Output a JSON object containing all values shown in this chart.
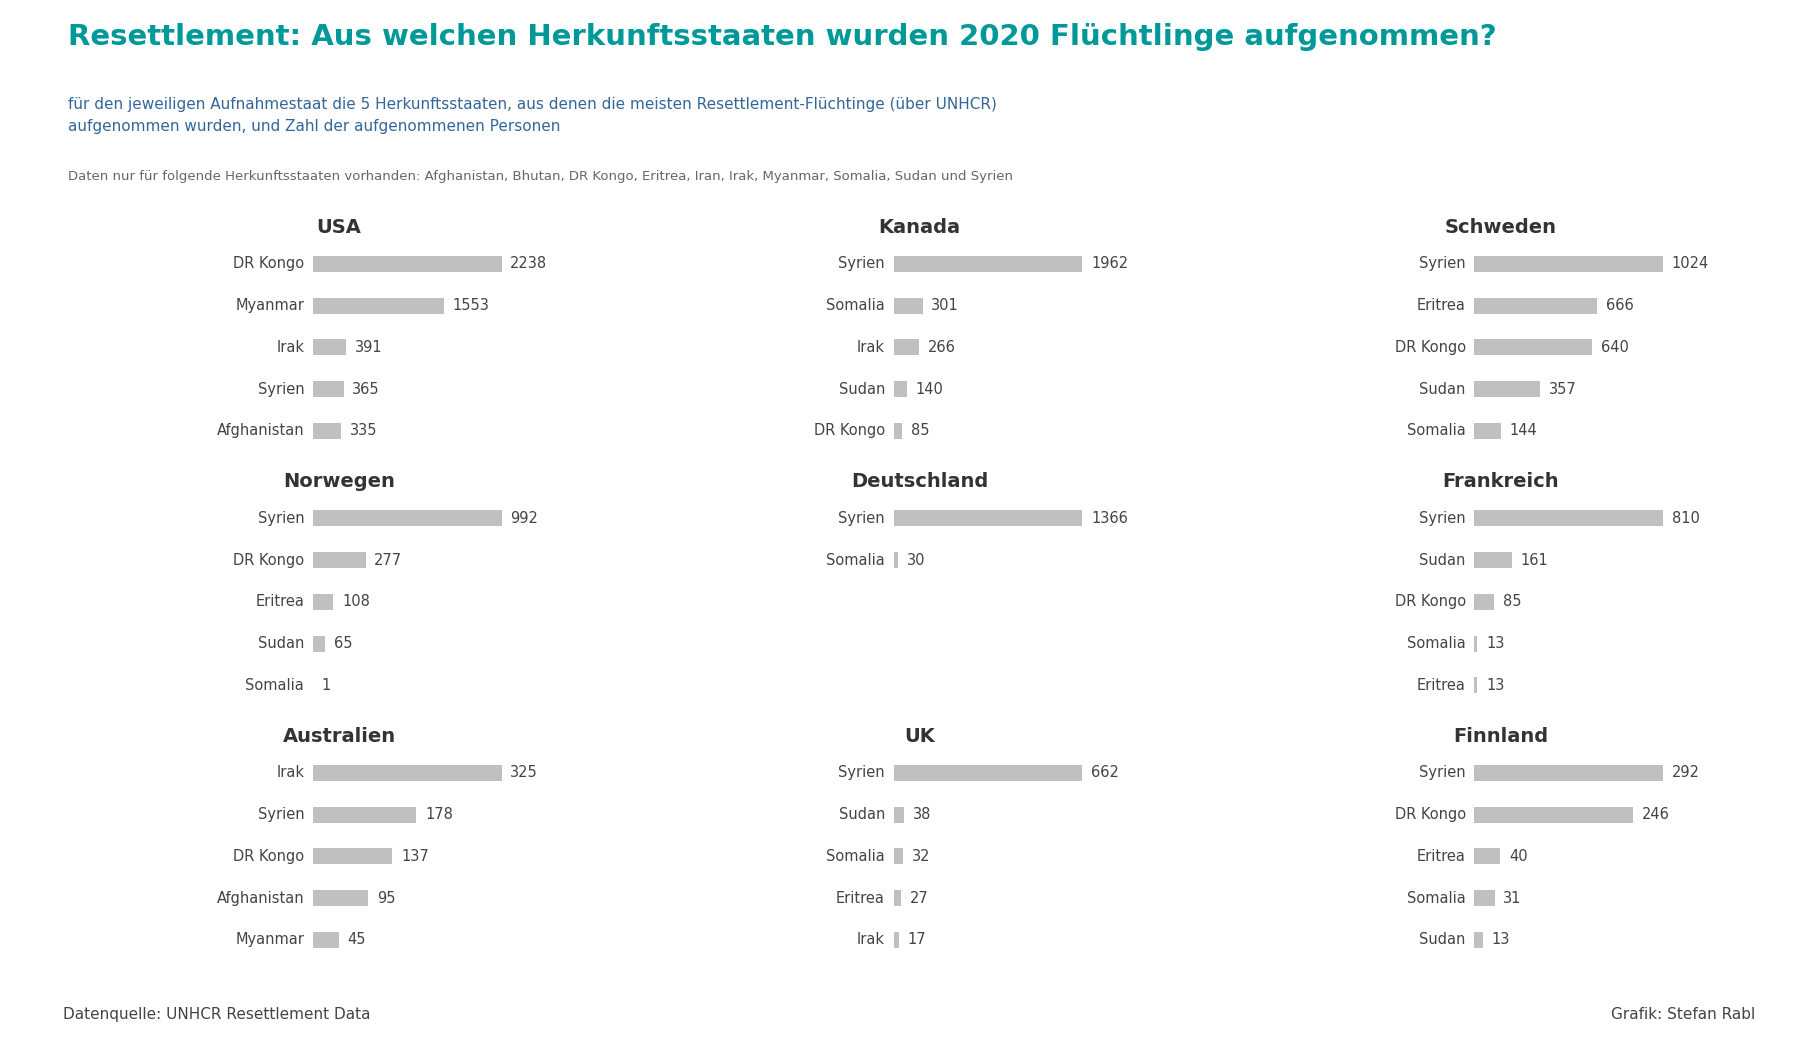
{
  "title": "Resettlement: Aus welchen Herkunftsstaaten wurden 2020 Flüchtlinge aufgenommen?",
  "subtitle": "für den jeweiligen Aufnahmestaat die 5 Herkunftsstaaten, aus denen die meisten Resettlement-Flüchtinge (über UNHCR)\naufgenommen wurden, und Zahl der aufgenommenen Personen",
  "footnote": "Daten nur für folgende Herkunftsstaaten vorhanden: Afghanistan, Bhutan, DR Kongo, Eritrea, Iran, Irak, Myanmar, Somalia, Sudan und Syrien",
  "source": "Datenquelle: UNHCR Resettlement Data",
  "author": "Grafik: Stefan Rabl",
  "title_color": "#00999a",
  "subtitle_color": "#336699",
  "footnote_color": "#666666",
  "bar_color": "#c0c0c0",
  "label_color": "#444444",
  "value_color": "#444444",
  "country_title_color": "#333333",
  "sidebar_color": "#009999",
  "footer_bg_color": "#e0e0e0",
  "bg_color": "#ffffff",
  "panels": [
    {
      "title": "USA",
      "data": [
        {
          "label": "DR Kongo",
          "value": 2238
        },
        {
          "label": "Myanmar",
          "value": 1553
        },
        {
          "label": "Irak",
          "value": 391
        },
        {
          "label": "Syrien",
          "value": 365
        },
        {
          "label": "Afghanistan",
          "value": 335
        }
      ]
    },
    {
      "title": "Kanada",
      "data": [
        {
          "label": "Syrien",
          "value": 1962
        },
        {
          "label": "Somalia",
          "value": 301
        },
        {
          "label": "Irak",
          "value": 266
        },
        {
          "label": "Sudan",
          "value": 140
        },
        {
          "label": "DR Kongo",
          "value": 85
        }
      ]
    },
    {
      "title": "Schweden",
      "data": [
        {
          "label": "Syrien",
          "value": 1024
        },
        {
          "label": "Eritrea",
          "value": 666
        },
        {
          "label": "DR Kongo",
          "value": 640
        },
        {
          "label": "Sudan",
          "value": 357
        },
        {
          "label": "Somalia",
          "value": 144
        }
      ]
    },
    {
      "title": "Norwegen",
      "data": [
        {
          "label": "Syrien",
          "value": 992
        },
        {
          "label": "DR Kongo",
          "value": 277
        },
        {
          "label": "Eritrea",
          "value": 108
        },
        {
          "label": "Sudan",
          "value": 65
        },
        {
          "label": "Somalia",
          "value": 1
        }
      ]
    },
    {
      "title": "Deutschland",
      "data": [
        {
          "label": "Syrien",
          "value": 1366
        },
        {
          "label": "Somalia",
          "value": 30
        }
      ]
    },
    {
      "title": "Frankreich",
      "data": [
        {
          "label": "Syrien",
          "value": 810
        },
        {
          "label": "Sudan",
          "value": 161
        },
        {
          "label": "DR Kongo",
          "value": 85
        },
        {
          "label": "Somalia",
          "value": 13
        },
        {
          "label": "Eritrea",
          "value": 13
        }
      ]
    },
    {
      "title": "Australien",
      "data": [
        {
          "label": "Irak",
          "value": 325
        },
        {
          "label": "Syrien",
          "value": 178
        },
        {
          "label": "DR Kongo",
          "value": 137
        },
        {
          "label": "Afghanistan",
          "value": 95
        },
        {
          "label": "Myanmar",
          "value": 45
        }
      ]
    },
    {
      "title": "UK",
      "data": [
        {
          "label": "Syrien",
          "value": 662
        },
        {
          "label": "Sudan",
          "value": 38
        },
        {
          "label": "Somalia",
          "value": 32
        },
        {
          "label": "Eritrea",
          "value": 27
        },
        {
          "label": "Irak",
          "value": 17
        }
      ]
    },
    {
      "title": "Finnland",
      "data": [
        {
          "label": "Syrien",
          "value": 292
        },
        {
          "label": "DR Kongo",
          "value": 246
        },
        {
          "label": "Eritrea",
          "value": 40
        },
        {
          "label": "Somalia",
          "value": 31
        },
        {
          "label": "Sudan",
          "value": 13
        }
      ]
    }
  ]
}
